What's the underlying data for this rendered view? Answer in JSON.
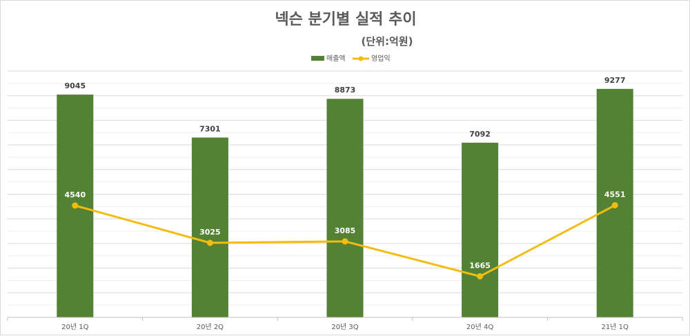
{
  "chart_data": {
    "type": "bar",
    "title": "넥슨 분기별 실적 추이",
    "subtitle": "(단위:억원)",
    "categories": [
      "20년 1Q",
      "20년 2Q",
      "20년 3Q",
      "20년 4Q",
      "21년 1Q"
    ],
    "series": [
      {
        "name": "매출액",
        "type": "bar",
        "color": "#548235",
        "values": [
          9045,
          7301,
          8873,
          7092,
          9277
        ]
      },
      {
        "name": "영업익",
        "type": "line",
        "color": "#f2bd0f",
        "values": [
          4540,
          3025,
          3085,
          1665,
          4551
        ]
      }
    ],
    "ylim": [
      0,
      10000
    ],
    "legend_position": "top-center",
    "grid": true
  }
}
